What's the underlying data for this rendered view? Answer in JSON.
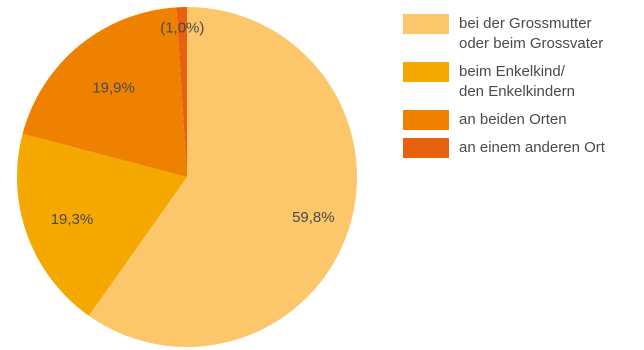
{
  "chart_data": {
    "type": "pie",
    "title": "",
    "slices": [
      {
        "label": "bei der Grossmutter\noder beim Grossvater",
        "value": 59.8,
        "display": "59,8%",
        "color": "#FCC76A"
      },
      {
        "label": "beim Enkelkind/\nden Enkelkindern",
        "value": 19.3,
        "display": "19,3%",
        "color": "#F5A800"
      },
      {
        "label": "an beiden Orten",
        "value": 19.9,
        "display": "19,9%",
        "color": "#EE8200"
      },
      {
        "label": "an einem anderen Ort",
        "value": 1.0,
        "display": "(1,0%)",
        "color": "#E8610E"
      }
    ],
    "legend_position": "right"
  }
}
